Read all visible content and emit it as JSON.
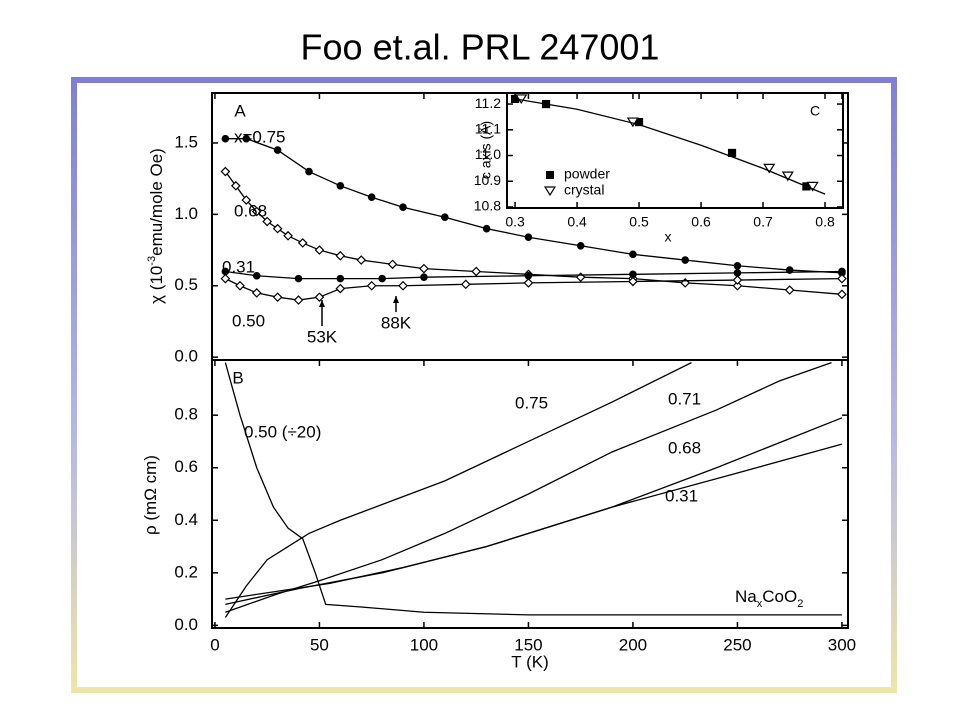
{
  "title": "Foo et.al. PRL 247001",
  "chart_data": [
    {
      "type": "line",
      "panel_label": "A",
      "ylabel": [
        "χ (10",
        "-3",
        "emu/mole Oe)"
      ],
      "xlim": [
        -1.4,
        302.9
      ],
      "ylim": [
        -0.02,
        1.85
      ],
      "yticks": [
        {
          "value": 0,
          "label": "0.0"
        },
        {
          "value": 0.5,
          "label": "0.5"
        },
        {
          "value": 1,
          "label": "1.0"
        },
        {
          "value": 1.5,
          "label": "1.5"
        }
      ],
      "annotations": [
        "53K",
        "88K"
      ],
      "series": [
        {
          "name": "x=0.75",
          "color": "#000",
          "marker": "circle-filled",
          "x": [
            5,
            15,
            30,
            45,
            60,
            75,
            90,
            110,
            130,
            150,
            175,
            200,
            225,
            250,
            275,
            300
          ],
          "values": [
            1.53,
            1.53,
            1.45,
            1.3,
            1.2,
            1.12,
            1.05,
            0.98,
            0.9,
            0.84,
            0.78,
            0.72,
            0.68,
            0.64,
            0.61,
            0.59
          ]
        },
        {
          "name": "0.68",
          "color": "#000",
          "marker": "diamond-open",
          "x": [
            5,
            10,
            15,
            20,
            25,
            30,
            35,
            42,
            50,
            60,
            70,
            85,
            100,
            125,
            150,
            175,
            200,
            225,
            250,
            275,
            300
          ],
          "values": [
            1.3,
            1.2,
            1.1,
            1.02,
            0.95,
            0.9,
            0.85,
            0.8,
            0.75,
            0.71,
            0.68,
            0.65,
            0.62,
            0.6,
            0.58,
            0.56,
            0.55,
            0.52,
            0.5,
            0.47,
            0.44
          ]
        },
        {
          "name": "0.31",
          "color": "#000",
          "marker": "circle-filled",
          "x": [
            5,
            20,
            40,
            60,
            80,
            100,
            150,
            200,
            250,
            300
          ],
          "values": [
            0.6,
            0.57,
            0.55,
            0.55,
            0.55,
            0.56,
            0.57,
            0.58,
            0.59,
            0.6
          ]
        },
        {
          "name": "0.50",
          "color": "#000",
          "marker": "diamond-open",
          "x": [
            5,
            12,
            20,
            30,
            40,
            50,
            60,
            75,
            90,
            120,
            150,
            200,
            250,
            300
          ],
          "values": [
            0.55,
            0.5,
            0.45,
            0.42,
            0.4,
            0.42,
            0.48,
            0.5,
            0.5,
            0.51,
            0.52,
            0.53,
            0.54,
            0.55
          ]
        }
      ]
    },
    {
      "type": "scatter",
      "panel_label": "C",
      "xlabel": "x",
      "ylabel": "c axis (Å)",
      "xlim": [
        0.287,
        0.829
      ],
      "ylim": [
        10.796,
        11.243
      ],
      "xticks": [
        0.3,
        0.4,
        0.5,
        0.6,
        0.7,
        0.8
      ],
      "yticks": [
        10.8,
        10.9,
        {
          "value": 11,
          "label": "11.0"
        },
        11.1,
        11.2
      ],
      "series": [
        {
          "name": "powder",
          "color": "#000",
          "marker": "square-filled",
          "line": false,
          "x": [
            0.3,
            0.35,
            0.5,
            0.65,
            0.77
          ],
          "values": [
            11.22,
            11.2,
            11.13,
            11.01,
            10.88
          ]
        },
        {
          "name": "crystal",
          "color": "#000",
          "marker": "triangle-open",
          "line": false,
          "x": [
            0.31,
            0.49,
            0.71,
            0.74,
            0.78
          ],
          "values": [
            11.22,
            11.13,
            10.95,
            10.92,
            10.88
          ]
        },
        {
          "color": "#000",
          "marker": "none",
          "x": [
            0.3,
            0.4,
            0.5,
            0.6,
            0.7,
            0.8
          ],
          "values": [
            11.22,
            11.18,
            11.12,
            11.04,
            10.95,
            10.85
          ]
        }
      ]
    },
    {
      "type": "line",
      "panel_label": "B",
      "ylabel": [
        "ρ (mΩ cm)"
      ],
      "xlabel": "T (K)",
      "compound": [
        "Na",
        "x",
        "CoO",
        "2"
      ],
      "xlim": [
        -1.4,
        302.9
      ],
      "ylim": [
        -0.01,
        1.01
      ],
      "xticks": [
        0,
        50,
        100,
        150,
        200,
        250,
        300
      ],
      "yticks": [
        {
          "value": 0,
          "label": "0.0"
        },
        {
          "value": 0.2,
          "label": "0.2"
        },
        {
          "value": 0.4,
          "label": "0.4"
        },
        {
          "value": 0.6,
          "label": "0.6"
        },
        {
          "value": 0.8,
          "label": "0.8"
        }
      ],
      "series": [
        {
          "name": "0.75",
          "color": "#000",
          "marker": "none",
          "x": [
            5,
            15,
            25,
            35,
            45,
            60,
            80,
            110,
            150,
            190,
            228
          ],
          "values": [
            0.03,
            0.15,
            0.25,
            0.3,
            0.35,
            0.4,
            0.46,
            0.55,
            0.7,
            0.85,
            1.0
          ]
        },
        {
          "name": "0.71",
          "color": "#000",
          "marker": "none",
          "x": [
            5,
            30,
            50,
            80,
            110,
            150,
            190,
            240,
            270,
            295
          ],
          "values": [
            0.05,
            0.12,
            0.17,
            0.25,
            0.35,
            0.5,
            0.66,
            0.82,
            0.93,
            1.0
          ]
        },
        {
          "name": "0.68",
          "color": "#000",
          "marker": "none",
          "x": [
            5,
            30,
            55,
            90,
            130,
            190,
            240,
            300
          ],
          "values": [
            0.1,
            0.13,
            0.16,
            0.22,
            0.3,
            0.45,
            0.6,
            0.79
          ]
        },
        {
          "name": "0.31",
          "color": "#000",
          "marker": "none",
          "x": [
            5,
            40,
            80,
            130,
            190,
            250,
            300
          ],
          "values": [
            0.08,
            0.14,
            0.2,
            0.3,
            0.45,
            0.58,
            0.69
          ]
        },
        {
          "name": "0.50 (÷20)",
          "color": "#000",
          "marker": "none",
          "x": [
            5,
            12,
            20,
            28,
            35,
            42,
            48,
            53,
            70,
            100,
            150,
            200,
            300
          ],
          "values": [
            1.0,
            0.8,
            0.6,
            0.45,
            0.37,
            0.33,
            0.2,
            0.08,
            0.07,
            0.05,
            0.04,
            0.04,
            0.04
          ]
        }
      ]
    }
  ]
}
